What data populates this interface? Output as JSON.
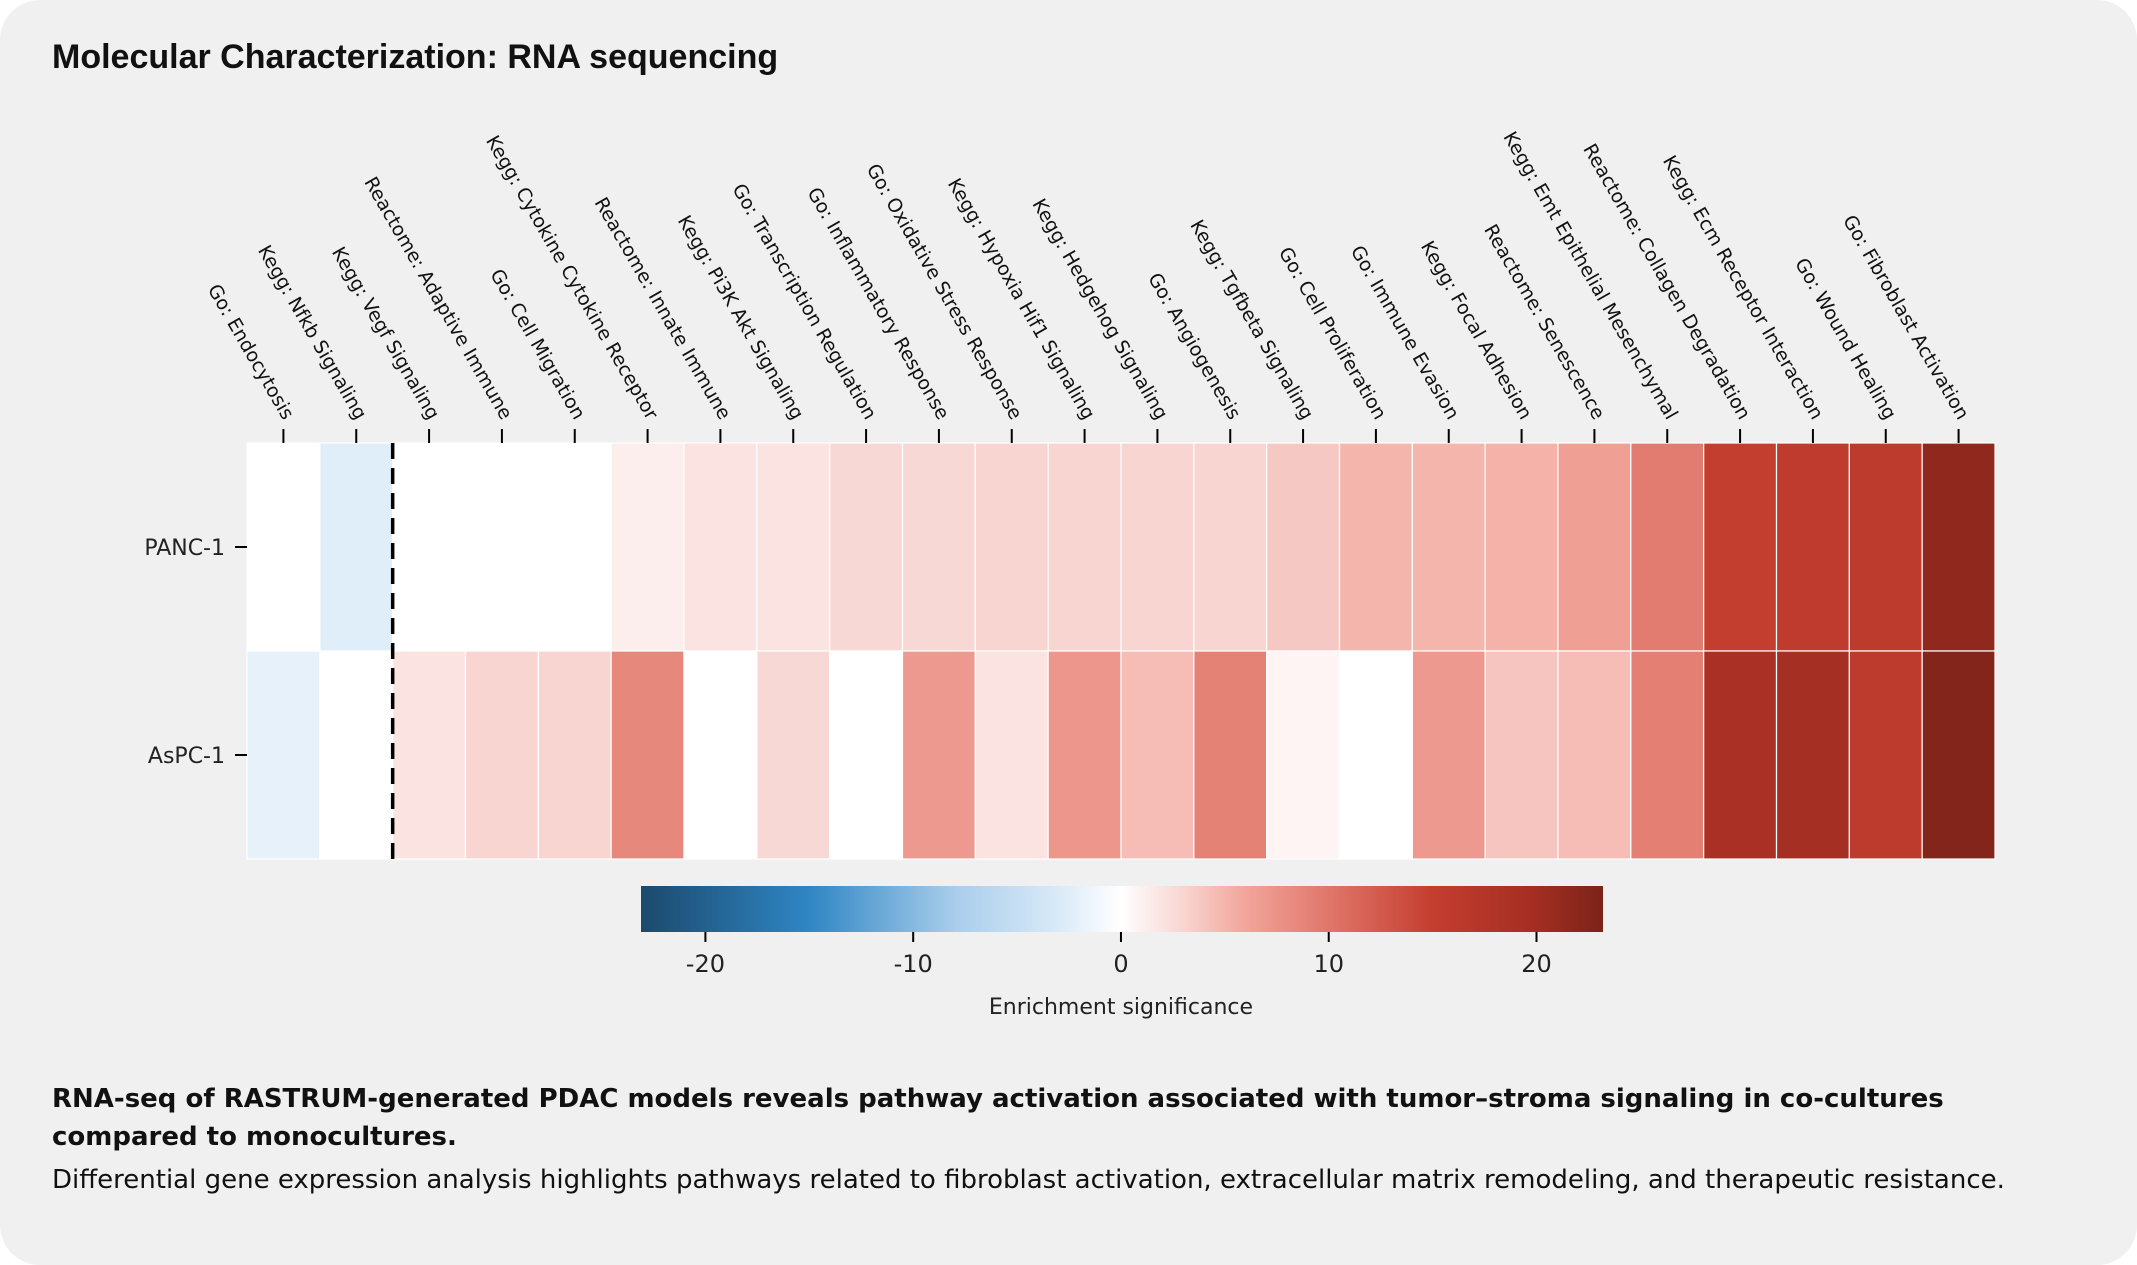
{
  "header": {
    "title": "Molecular Characterization: RNA sequencing"
  },
  "chart_data": {
    "type": "heatmap",
    "columns": [
      "Go: Endocytosis",
      "Kegg: Nfkb Signaling",
      "Kegg: Vegf Signaling",
      "Reactome: Adaptive Immune",
      "Go: Cell Migration",
      "Kegg: Cytokine Cytokine Receptor",
      "Reactome: Innate Immune",
      "Kegg: Pi3K Akt Signaling",
      "Go: Transcription Regulation",
      "Go: Inflammatory Response",
      "Go: Oxidative Stress Response",
      "Kegg: Hypoxia Hif1 Signaling",
      "Kegg: Hedgehog Signaling",
      "Go: Angiogenesis",
      "Kegg: Tgfbeta Signaling",
      "Go: Cell Proliferation",
      "Go: Immune Evasion",
      "Kegg: Focal Adhesion",
      "Reactome: Senescence",
      "Kegg: Emt Epithelial Mesenchymal",
      "Reactome: Collagen Degradation",
      "Kegg: Ecm Receptor Interaction",
      "Go: Wound Healing",
      "Go: Fibroblast Activation"
    ],
    "rows": [
      {
        "name": "PANC-1",
        "values": [
          0,
          -2.5,
          0,
          0,
          0,
          1.2,
          2,
          2,
          2.8,
          2.8,
          3,
          3,
          3,
          3,
          3.8,
          5,
          5,
          5.2,
          6.5,
          9.5,
          15,
          15.8,
          16,
          21.5
        ]
      },
      {
        "name": "AsPC-1",
        "values": [
          -2,
          0,
          2,
          3,
          3,
          8.5,
          0,
          2.8,
          0,
          7,
          2,
          7.2,
          4.5,
          9,
          0.8,
          0,
          7,
          4,
          4.5,
          9.2,
          19,
          19.5,
          16,
          22.5
        ]
      }
    ],
    "divider_after_column": 2,
    "colorbar": {
      "label": "Enrichment significance",
      "range": [
        -23.1,
        23.2
      ],
      "ticks": [
        -20,
        -10,
        0,
        10,
        20
      ],
      "tick_labels": [
        "-20",
        "-10",
        "0",
        "10",
        "20"
      ],
      "colormap": [
        {
          "v": -23,
          "c": "#1c4a6e"
        },
        {
          "v": -15,
          "c": "#2f86c4"
        },
        {
          "v": -8,
          "c": "#a9cdeb"
        },
        {
          "v": -3,
          "c": "#d9eaf8"
        },
        {
          "v": 0,
          "c": "#ffffff"
        },
        {
          "v": 3,
          "c": "#f8d5d1"
        },
        {
          "v": 6,
          "c": "#f2a59b"
        },
        {
          "v": 10,
          "c": "#e0766a"
        },
        {
          "v": 15,
          "c": "#c43e2f"
        },
        {
          "v": 20,
          "c": "#a32d22"
        },
        {
          "v": 23.2,
          "c": "#7b2319"
        }
      ]
    }
  },
  "caption": {
    "bold": "RNA-seq of RASTRUM-generated PDAC models reveals pathway activation associated with tumor–stroma signaling in co-cultures compared to monocultures.",
    "text": "Differential gene expression analysis highlights pathways related to fibroblast activation, extracellular matrix remodeling, and therapeutic resistance."
  }
}
